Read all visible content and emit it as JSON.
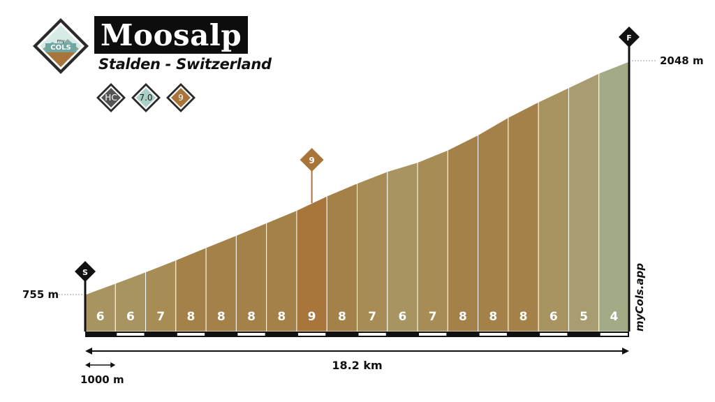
{
  "header": {
    "title": "Moosalp",
    "subtitle": "Stalden - Switzerland",
    "logo": {
      "line1": "my",
      "line2": "COLS"
    },
    "badges": [
      {
        "label": "HC",
        "fill": "#545454",
        "text_color": "#ffffff"
      },
      {
        "label": "7.0",
        "fill": "#a9cfc6",
        "text_color": "#1e1e1e"
      },
      {
        "label": "9",
        "fill": "#a8743a",
        "text_color": "#ffffff"
      }
    ]
  },
  "chart_data": {
    "type": "area",
    "start_marker": "S",
    "finish_marker": "F",
    "start_elevation_label": "755 m",
    "finish_elevation_label": "2048 m",
    "distance_label": "18.2 km",
    "scale_label": "1000 m",
    "max_gradient_marker": "9",
    "watermark": "myCols.app",
    "gradients": [
      6,
      6,
      7,
      8,
      8,
      8,
      8,
      9,
      8,
      7,
      6,
      7,
      8,
      8,
      8,
      6,
      5,
      4
    ],
    "elevation_m": [
      755,
      817,
      880,
      946,
      1015,
      1083,
      1152,
      1222,
      1301,
      1372,
      1437,
      1488,
      1556,
      1640,
      1737,
      1823,
      1902,
      1982,
      2048
    ],
    "colors": {
      "4": "#a2ab85",
      "5": "#a89d70",
      "6": "#a79460",
      "7": "#a78c55",
      "8": "#a5814a",
      "9": "#a8763a",
      "max_marker": "#a8743a",
      "marker": "#111111",
      "axis": "#111111"
    }
  }
}
